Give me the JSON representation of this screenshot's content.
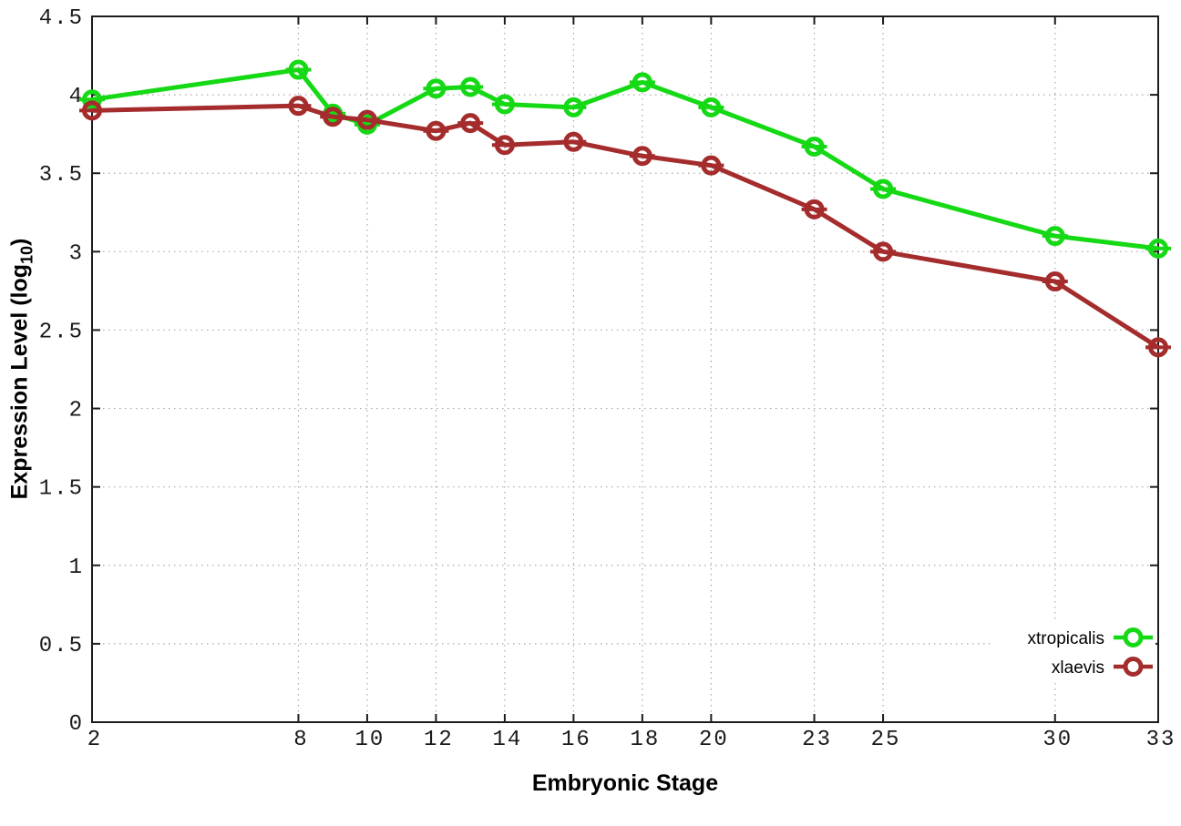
{
  "figure": {
    "background": "#ffffff"
  },
  "chart_data": {
    "type": "line",
    "title": "",
    "xlabel": "Embryonic Stage",
    "ylabel": {
      "main": "Expression Level (log",
      "sub": "10",
      "end": ")"
    },
    "x": [
      2,
      8,
      9,
      10,
      12,
      13,
      14,
      16,
      18,
      20,
      23,
      25,
      30,
      33
    ],
    "series": [
      {
        "name": "xtropicalis",
        "color": "#16d916",
        "values": [
          3.97,
          4.16,
          3.88,
          3.81,
          4.04,
          4.05,
          3.94,
          3.92,
          4.08,
          3.92,
          3.67,
          3.4,
          3.1,
          3.02
        ]
      },
      {
        "name": "xlaevis",
        "color": "#a52c2c",
        "values": [
          3.9,
          3.93,
          3.86,
          3.84,
          3.77,
          3.82,
          3.68,
          3.7,
          3.61,
          3.55,
          3.27,
          3.0,
          2.81,
          2.39
        ]
      }
    ],
    "xlim": [
      2,
      33
    ],
    "ylim": [
      0,
      4.5
    ],
    "xticks": {
      "values": [
        2,
        8,
        10,
        12,
        14,
        16,
        18,
        20,
        23,
        25,
        30,
        33
      ],
      "labels": [
        "2",
        "8",
        "10",
        "12",
        "14",
        "16",
        "18",
        "20",
        "23",
        "25",
        "30",
        "33"
      ]
    },
    "yticks": {
      "values": [
        0,
        0.5,
        1,
        1.5,
        2,
        2.5,
        3,
        3.5,
        4,
        4.5
      ],
      "labels": [
        "0",
        "0.5",
        "1",
        "1.5",
        "2",
        "2.5",
        "3",
        "3.5",
        "4",
        "4.5"
      ]
    },
    "grid": true,
    "grid_style": "dotted",
    "grid_color": "#a8a8a8",
    "axis_color": "#1c1c1c",
    "marker": "open-circle-with-error-dash",
    "legend_position": "bottom-right-inside"
  }
}
